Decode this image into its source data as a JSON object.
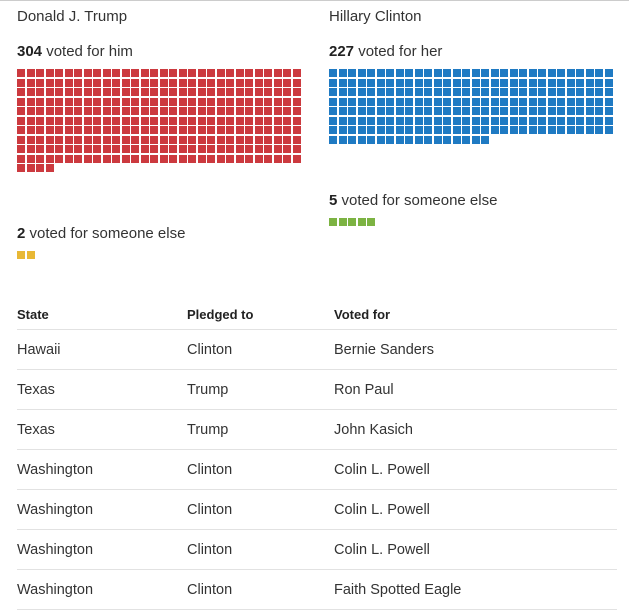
{
  "chart_data": {
    "type": "table",
    "candidates": [
      {
        "name": "Donald J. Trump",
        "count": "304",
        "count_suffix": " voted for him",
        "value": 304,
        "color": "#cc3a3f",
        "other_count": "2",
        "other_suffix": " voted for someone else",
        "other_value": 2,
        "other_color": "#e8b835"
      },
      {
        "name": "Hillary Clinton",
        "count": "227",
        "count_suffix": " voted for her",
        "value": 227,
        "color": "#1f7ac3",
        "other_count": "5",
        "other_suffix": " voted for someone else",
        "other_value": 5,
        "other_color": "#7cb342"
      }
    ],
    "table": {
      "headers": [
        "State",
        "Pledged to",
        "Voted for"
      ],
      "rows": [
        [
          "Hawaii",
          "Clinton",
          "Bernie Sanders"
        ],
        [
          "Texas",
          "Trump",
          "Ron Paul"
        ],
        [
          "Texas",
          "Trump",
          "John Kasich"
        ],
        [
          "Washington",
          "Clinton",
          "Colin L. Powell"
        ],
        [
          "Washington",
          "Clinton",
          "Colin L. Powell"
        ],
        [
          "Washington",
          "Clinton",
          "Colin L. Powell"
        ],
        [
          "Washington",
          "Clinton",
          "Faith Spotted Eagle"
        ]
      ]
    }
  }
}
